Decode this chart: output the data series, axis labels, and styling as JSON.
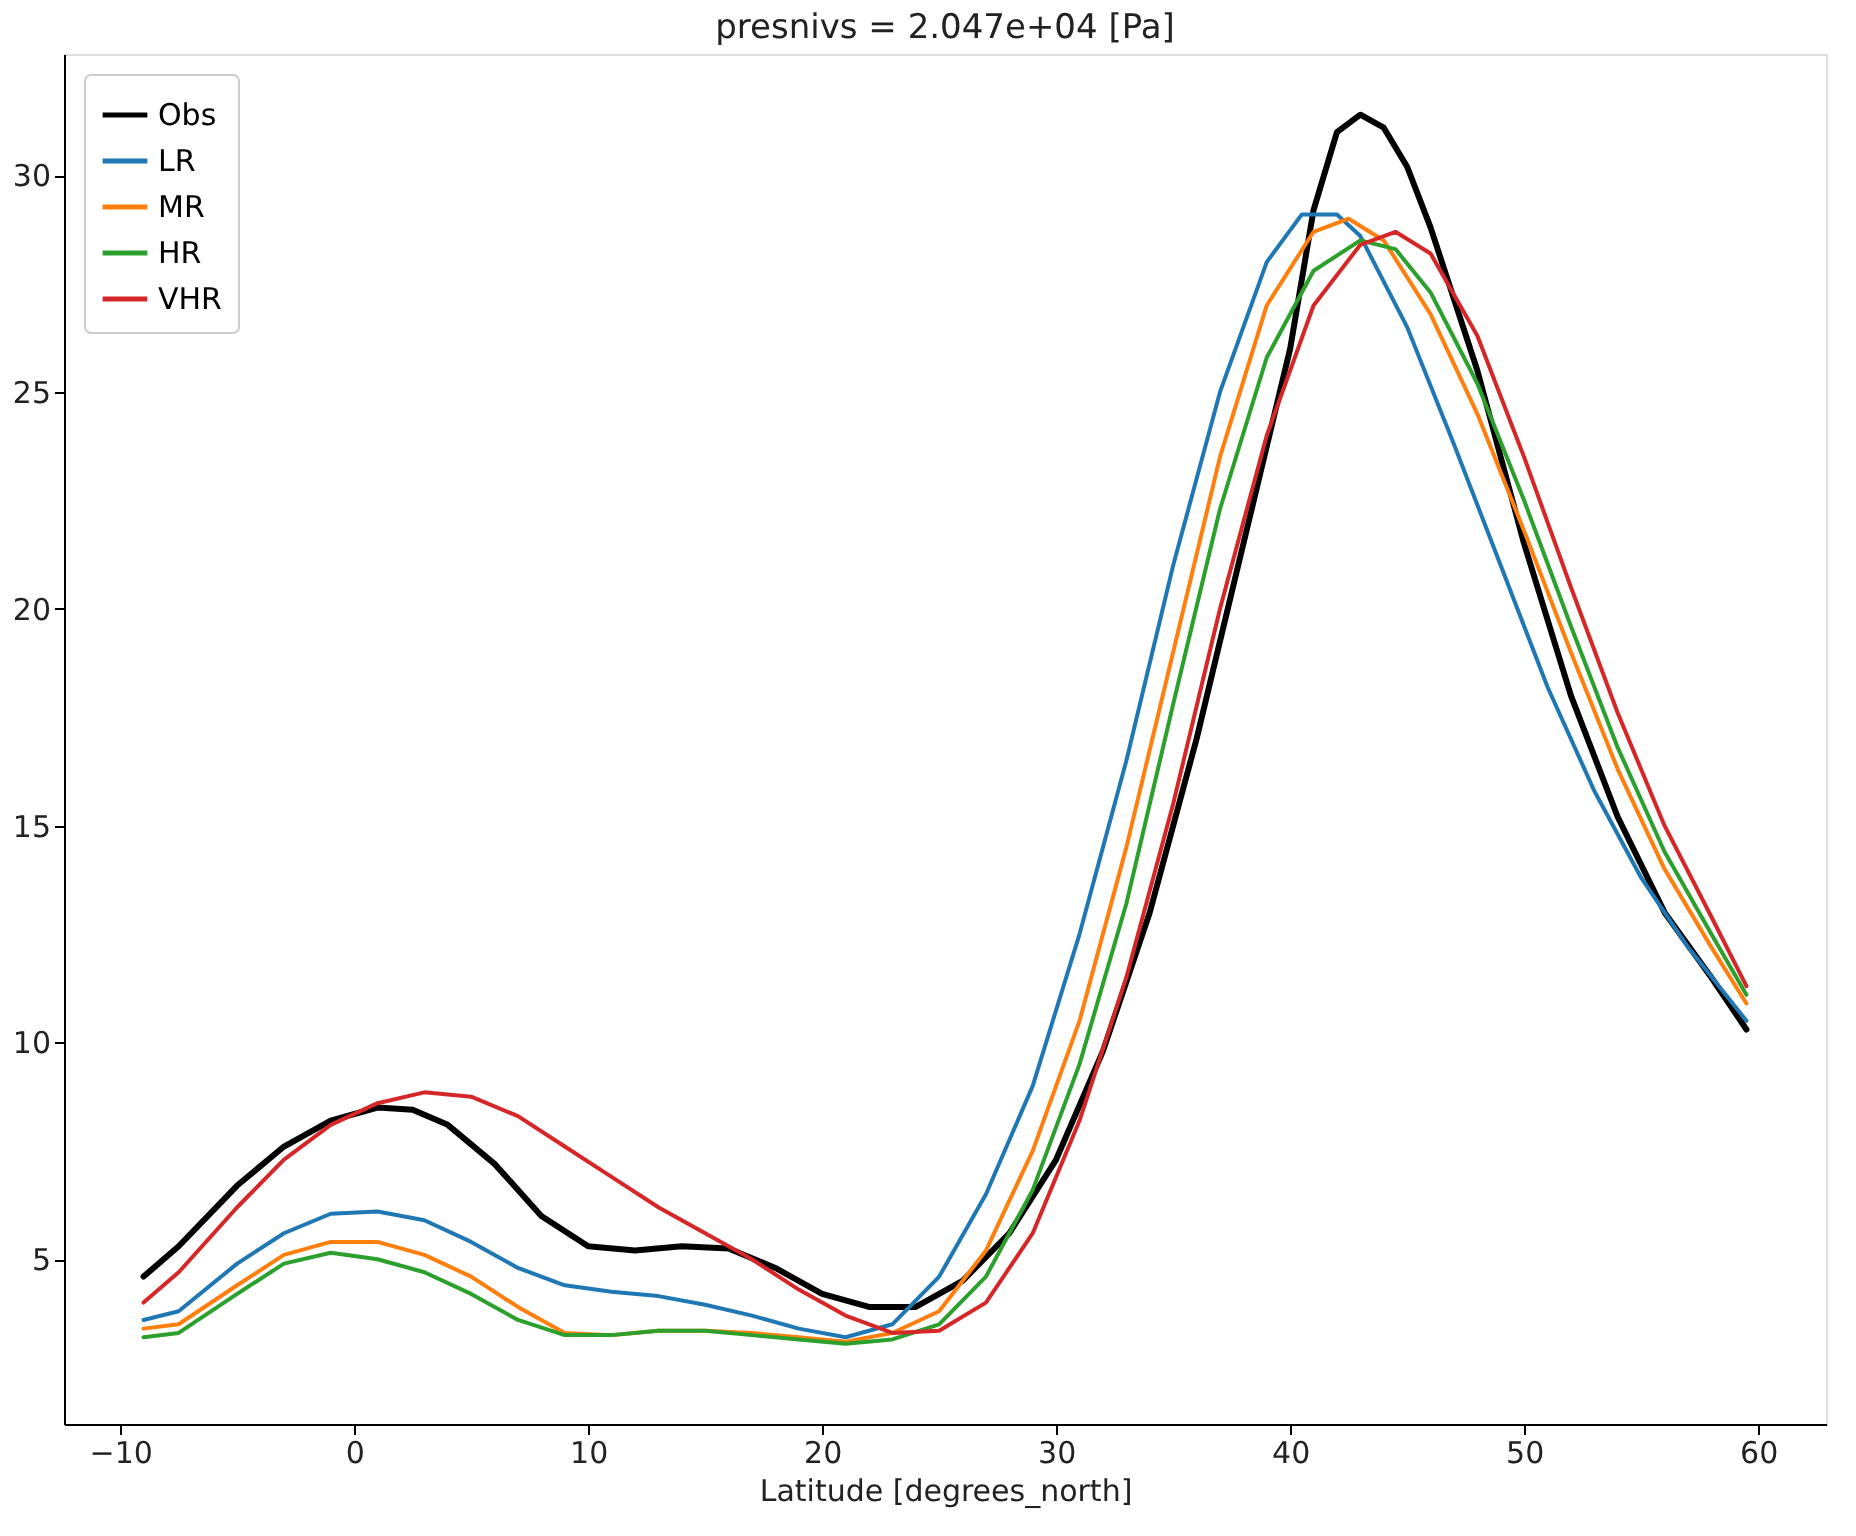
{
  "chart_data": {
    "type": "line",
    "title": "presnivs = 2.047e+04 [Pa]",
    "xlabel": "Latitude [degrees_north]",
    "xlim": [
      -12.4,
      62.9
    ],
    "xticks": [
      -10,
      0,
      10,
      20,
      30,
      40,
      50,
      60
    ],
    "ylim": [
      1.2,
      32.8
    ],
    "yticks": [
      5,
      10,
      15,
      20,
      25,
      30
    ],
    "grid": false,
    "legend": "top left",
    "marker": "none",
    "line_style": "solid",
    "series": [
      {
        "name": "Obs",
        "color": "#000000",
        "x": [
          -9,
          -7.5,
          -5,
          -3,
          -1,
          1,
          2.5,
          4,
          6,
          8,
          10,
          12,
          14,
          16,
          18,
          20,
          22,
          24,
          26,
          28,
          30,
          32,
          34,
          36,
          38,
          40,
          41,
          42,
          43,
          44,
          45,
          46,
          48,
          50,
          52,
          54,
          56,
          58,
          59.5
        ],
        "values": [
          4.6,
          5.3,
          6.7,
          7.6,
          8.2,
          8.5,
          8.45,
          8.1,
          7.2,
          6.0,
          5.3,
          5.2,
          5.3,
          5.25,
          4.8,
          4.2,
          3.9,
          3.9,
          4.5,
          5.6,
          7.3,
          9.8,
          13,
          17,
          21.5,
          26,
          29.2,
          31,
          31.4,
          31.1,
          30.2,
          28.8,
          25.5,
          21.5,
          18,
          15.2,
          13,
          11.5,
          10.3
        ]
      },
      {
        "name": "LR",
        "color": "#1f77b4",
        "x": [
          -9,
          -7.5,
          -5,
          -3,
          -1,
          1,
          3,
          5,
          7,
          9,
          11,
          13,
          15,
          17,
          19,
          21,
          23,
          25,
          27,
          29,
          31,
          33,
          35,
          37,
          39,
          40.5,
          42,
          43,
          45,
          47,
          49,
          51,
          53,
          55,
          57,
          59.5
        ],
        "values": [
          3.6,
          3.8,
          4.9,
          5.6,
          6.05,
          6.1,
          5.9,
          5.4,
          4.8,
          4.4,
          4.25,
          4.15,
          3.95,
          3.7,
          3.4,
          3.2,
          3.5,
          4.6,
          6.5,
          9,
          12.5,
          16.5,
          21,
          25,
          28,
          29.1,
          29.1,
          28.6,
          26.5,
          23.8,
          21,
          18.2,
          15.8,
          13.8,
          12.2,
          10.5
        ]
      },
      {
        "name": "MR",
        "color": "#ff7f0e",
        "x": [
          -9,
          -7.5,
          -5,
          -3,
          -1,
          1,
          3,
          5,
          7,
          9,
          11,
          13,
          15,
          17,
          19,
          21,
          23,
          25,
          27,
          29,
          31,
          33,
          35,
          37,
          39,
          41,
          42.5,
          44,
          46,
          48,
          50,
          52,
          54,
          56,
          58,
          59.5
        ],
        "values": [
          3.4,
          3.5,
          4.4,
          5.1,
          5.4,
          5.4,
          5.1,
          4.6,
          3.9,
          3.3,
          3.25,
          3.35,
          3.35,
          3.3,
          3.2,
          3.1,
          3.3,
          3.8,
          5.2,
          7.5,
          10.5,
          14.5,
          19,
          23.5,
          27,
          28.7,
          29,
          28.5,
          26.8,
          24.5,
          21.8,
          19,
          16.3,
          14,
          12.2,
          10.9
        ]
      },
      {
        "name": "HR",
        "color": "#2ca02c",
        "x": [
          -9,
          -7.5,
          -5,
          -3,
          -1,
          1,
          3,
          5,
          7,
          9,
          11,
          13,
          15,
          17,
          19,
          21,
          23,
          25,
          27,
          29,
          31,
          33,
          35,
          37,
          39,
          41,
          43,
          44.5,
          46,
          48,
          50,
          52,
          54,
          56,
          58,
          59.5
        ],
        "values": [
          3.2,
          3.3,
          4.2,
          4.9,
          5.15,
          5.0,
          4.7,
          4.2,
          3.6,
          3.25,
          3.25,
          3.35,
          3.35,
          3.25,
          3.15,
          3.05,
          3.15,
          3.5,
          4.6,
          6.6,
          9.5,
          13.2,
          17.8,
          22.3,
          25.8,
          27.8,
          28.5,
          28.3,
          27.3,
          25.2,
          22.5,
          19.6,
          16.8,
          14.4,
          12.5,
          11.1
        ]
      },
      {
        "name": "VHR",
        "color": "#d62728",
        "x": [
          -9,
          -7.5,
          -5,
          -3,
          -1,
          1,
          3,
          5,
          7,
          9,
          11,
          13,
          15,
          17,
          19,
          21,
          23,
          25,
          27,
          29,
          31,
          33,
          35,
          37,
          39,
          41,
          43,
          44.5,
          46,
          48,
          50,
          52,
          54,
          56,
          58,
          59.5
        ],
        "values": [
          4.0,
          4.7,
          6.2,
          7.3,
          8.1,
          8.6,
          8.85,
          8.75,
          8.3,
          7.6,
          6.9,
          6.2,
          5.6,
          5.0,
          4.3,
          3.7,
          3.3,
          3.35,
          4.0,
          5.6,
          8.2,
          11.5,
          15.5,
          20,
          24,
          27,
          28.4,
          28.7,
          28.2,
          26.3,
          23.5,
          20.5,
          17.6,
          15,
          12.9,
          11.3
        ]
      }
    ]
  }
}
